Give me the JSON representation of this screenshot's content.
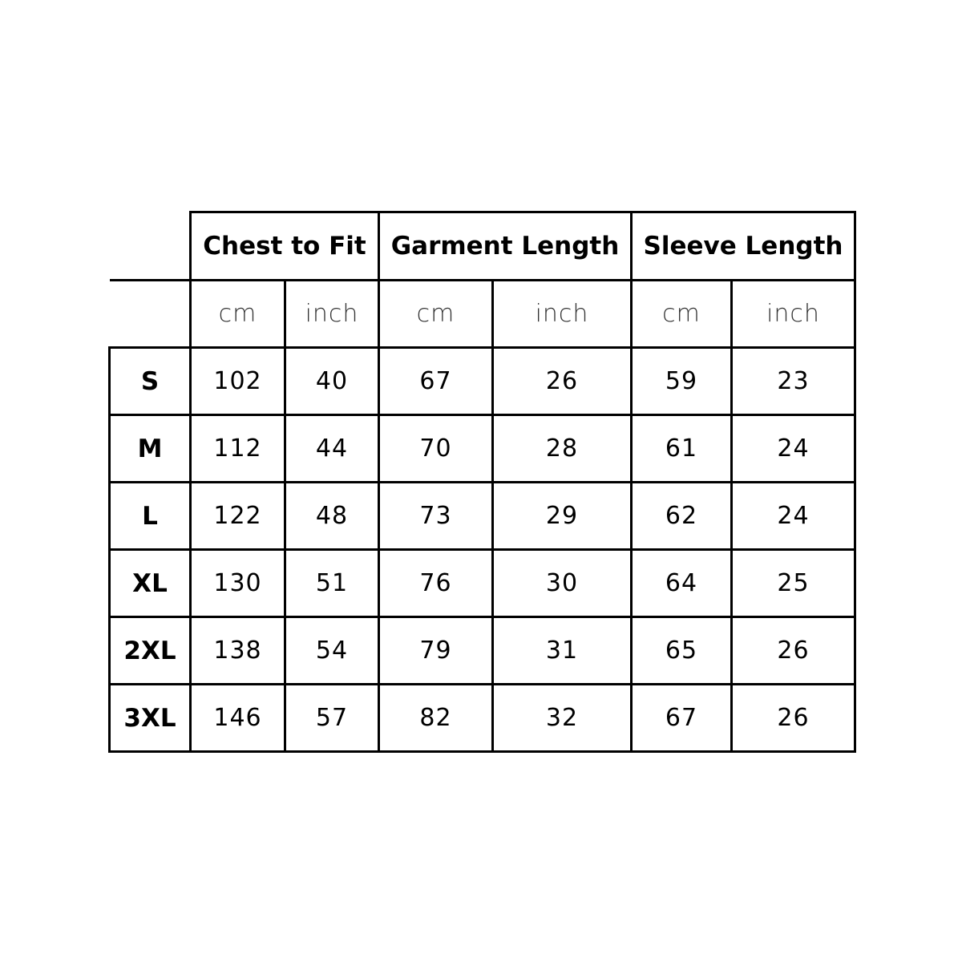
{
  "groups": [
    "Chest to Fit",
    "Garment Length",
    "Sleeve Length"
  ],
  "units": [
    "cm",
    "inch",
    "cm",
    "inch",
    "cm",
    "inch"
  ],
  "rows": [
    {
      "size": "S",
      "values": [
        "102",
        "40",
        "67",
        "26",
        "59",
        "23"
      ]
    },
    {
      "size": "M",
      "values": [
        "112",
        "44",
        "70",
        "28",
        "61",
        "24"
      ]
    },
    {
      "size": "L",
      "values": [
        "122",
        "48",
        "73",
        "29",
        "62",
        "24"
      ]
    },
    {
      "size": "XL",
      "values": [
        "130",
        "51",
        "76",
        "30",
        "64",
        "25"
      ]
    },
    {
      "size": "2XL",
      "values": [
        "138",
        "54",
        "79",
        "31",
        "65",
        "26"
      ]
    },
    {
      "size": "3XL",
      "values": [
        "146",
        "57",
        "82",
        "32",
        "67",
        "26"
      ]
    }
  ]
}
